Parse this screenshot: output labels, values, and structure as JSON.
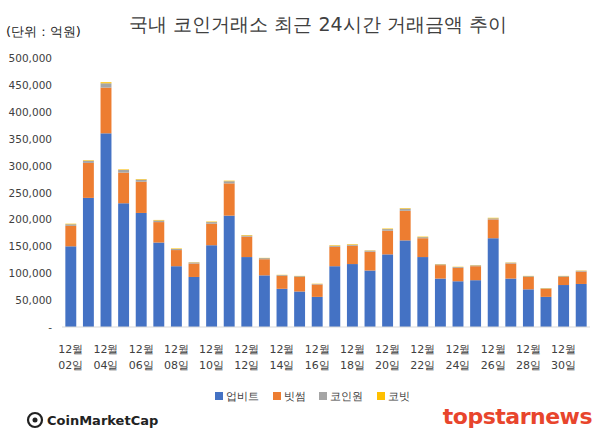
{
  "chart_data": {
    "type": "bar",
    "stacked": true,
    "grid": false,
    "legend": "bottom",
    "title": "국내 코인거래소 최근 24시간 거래금액 추이",
    "y_label": "(단위 : 억원)",
    "annotations": [
      "CoinMarketCap",
      "topstarnews"
    ],
    "categories": [
      "12월 02일",
      null,
      "12월 04일",
      null,
      "12월 06일",
      null,
      "12월 08일",
      null,
      "12월 10일",
      null,
      "12월 12일",
      null,
      "12월 14일",
      null,
      "12월 16일",
      null,
      "12월 18일",
      null,
      "12월 20일",
      null,
      "12월 22일",
      null,
      "12월 24일",
      null,
      "12월 26일",
      null,
      "12월 28일",
      null,
      "12월 30일",
      null
    ],
    "series": [
      {
        "name": "업비트",
        "color": "#4472c4",
        "values": [
          150000,
          240000,
          360000,
          230000,
          212000,
          157000,
          113000,
          93000,
          152000,
          207000,
          130000,
          96000,
          71000,
          66000,
          56000,
          113000,
          117000,
          105000,
          135000,
          161000,
          130000,
          90000,
          85000,
          87000,
          165000,
          90000,
          70000,
          56000,
          78000,
          80000
        ]
      },
      {
        "name": "빗썸",
        "color": "#ed7d31",
        "values": [
          38000,
          65000,
          85000,
          57000,
          58000,
          38000,
          30000,
          25000,
          40000,
          60000,
          38000,
          30000,
          24000,
          27000,
          23000,
          36000,
          34000,
          35000,
          44000,
          55000,
          35000,
          25000,
          25000,
          26000,
          35000,
          28000,
          23000,
          15000,
          15000,
          23000
        ]
      },
      {
        "name": "코인원",
        "color": "#a5a5a5",
        "values": [
          3000,
          4000,
          8000,
          5000,
          4000,
          3000,
          2000,
          2000,
          3000,
          4000,
          2000,
          2000,
          1500,
          1500,
          1000,
          2000,
          2000,
          2000,
          3000,
          4000,
          2000,
          1500,
          1500,
          1500,
          2000,
          1500,
          1500,
          1000,
          1500,
          1500
        ]
      },
      {
        "name": "코빗",
        "color": "#ffc000",
        "values": [
          1000,
          1000,
          2000,
          1000,
          1000,
          1000,
          1000,
          500,
          1000,
          1000,
          1000,
          500,
          500,
          500,
          500,
          1000,
          1000,
          500,
          1000,
          1000,
          1000,
          500,
          500,
          500,
          1000,
          500,
          500,
          500,
          500,
          500
        ]
      }
    ],
    "ylim": [
      0,
      500000
    ],
    "yticks": [
      {
        "value": 0,
        "label": "-"
      },
      {
        "value": 50000,
        "label": "50,000"
      },
      {
        "value": 100000,
        "label": "100,000"
      },
      {
        "value": 150000,
        "label": "150,000"
      },
      {
        "value": 200000,
        "label": "200,000"
      },
      {
        "value": 250000,
        "label": "250,000"
      },
      {
        "value": 300000,
        "label": "300,000"
      },
      {
        "value": 350000,
        "label": "350,000"
      },
      {
        "value": 400000,
        "label": "400,000"
      },
      {
        "value": 450000,
        "label": "450,000"
      },
      {
        "value": 500000,
        "label": "500,000"
      }
    ]
  }
}
